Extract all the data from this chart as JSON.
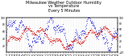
{
  "title": "Milwaukee Weather Outdoor Humidity\nvs Temperature\nEvery 5 Minutes",
  "title_fontsize": 3.5,
  "bg_color": "#ffffff",
  "plot_bg_color": "#ffffff",
  "grid_color": "#bbbbbb",
  "humidity_color": "#0000cc",
  "temp_color": "#cc0000",
  "ylim_left": [
    0,
    100
  ],
  "ylim_right": [
    -20,
    100
  ],
  "left_yticks": [
    20,
    40,
    60,
    80,
    100
  ],
  "right_yticks": [
    -20,
    0,
    20,
    40,
    60,
    80,
    100
  ]
}
